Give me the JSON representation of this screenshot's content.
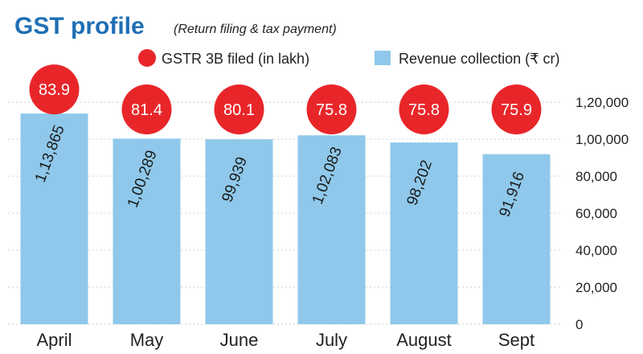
{
  "title": "GST profile",
  "subtitle": "(Return filing & tax payment)",
  "legend": {
    "bubble_series": "GSTR 3B filed (in lakh)",
    "bar_series": "Revenue collection (₹ cr)"
  },
  "colors": {
    "title": "#1f6fb5",
    "bar": "#8fc8ea",
    "bubble": "#e8262a",
    "grid": "#cfcfcf"
  },
  "chart_data": {
    "type": "bar",
    "title": "GST profile",
    "subtitle": "(Return filing & tax payment)",
    "categories": [
      "April",
      "May",
      "June",
      "July",
      "August",
      "Sept"
    ],
    "series": [
      {
        "name": "Revenue collection (₹ cr)",
        "values": [
          113865,
          100289,
          99939,
          102083,
          98202,
          91916
        ],
        "value_labels": [
          "1,13,865",
          "1,00,289",
          "99,939",
          "1,02,083",
          "98,202",
          "91,916"
        ]
      },
      {
        "name": "GSTR 3B filed (in lakh)",
        "values": [
          83.9,
          81.4,
          80.1,
          75.8,
          75.8,
          75.9
        ],
        "value_labels": [
          "83.9",
          "81.4",
          "80.1",
          "75.8",
          "75.8",
          "75.9"
        ]
      }
    ],
    "yticks": [
      0,
      20000,
      40000,
      60000,
      80000,
      100000,
      120000
    ],
    "ytick_labels": [
      "0",
      "20,000",
      "40,000",
      "60,000",
      "80,000",
      "1,00,000",
      "1,20,000"
    ],
    "ylim": [
      0,
      120000
    ],
    "y_axis_side": "right",
    "grid": true,
    "legend_position": "top"
  }
}
